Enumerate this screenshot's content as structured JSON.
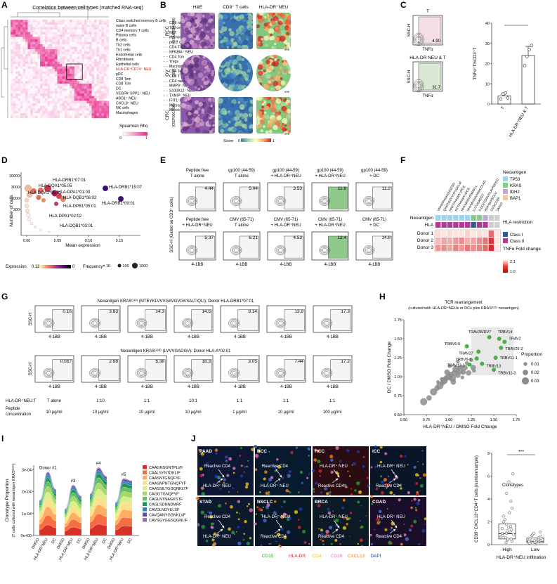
{
  "panel_letters": [
    "A",
    "B",
    "C",
    "D",
    "E",
    "F",
    "G",
    "H",
    "I",
    "J"
  ],
  "panelA": {
    "title": "Correlation between cell types (matched RNA-seq)",
    "labels_left": [
      "Class switched memory B cells",
      "naive B cells",
      "CD4 memory T cells",
      "Plasma cells",
      "B cells",
      "Th2 cells",
      "Th1 cells",
      "Endothelial cells",
      "Fibroblasts",
      "Epithelial cells",
      "HLA-DR⁺CD74⁺ NEU",
      "pDC",
      "CD8 Tem",
      "CD8 Tcm",
      "DC",
      "VEGFA⁺SPP1⁺ NEU",
      "ARG1⁺ NEU",
      "CXCL8⁺ NEU",
      "NK cells",
      "Macrophages"
    ],
    "labels_right": [
      "CD8 naive T cells",
      "Tgd cells",
      "NKT",
      "Memory B cells",
      "pro B cells",
      "CD4 T cells",
      "NFKBIA⁺ NEU",
      "CD4 Tcm",
      "Tregs",
      "Macrophages M1",
      "CD4 Tem",
      "CD8 T cells",
      "CD4 naive T cells",
      "MMP9⁺ NEU",
      "S100A12⁺ NEU",
      "TXNIP⁺ NEU",
      "IFIT1⁺ISG15⁺ NEU",
      "Macrophages M2",
      "Monocytes"
    ],
    "highlight_label": "HLA-DR⁺CD74⁺ NEU",
    "legend_title": "Spearman Rho",
    "legend_min": "0",
    "legend_max": "1",
    "highlight_color": "#d7191c"
  },
  "panelB": {
    "columns": [
      "H&E",
      "CD8⁺ T cells",
      "HLA-DR⁺NEU"
    ],
    "rows": [
      {
        "label": "RCC",
        "sub": "(GSM5924040)"
      },
      {
        "label": "OV",
        "sub": "(10x)"
      },
      {
        "label": "CRC",
        "sub": "(OEP001756)"
      }
    ],
    "stars": "***",
    "score_label": "Score",
    "score_min": "0",
    "score_max": "1"
  },
  "panelC": {
    "flow": [
      {
        "title": "T",
        "value": "4.90"
      },
      {
        "title": "HLA-DR NEU & T",
        "value": "31.7"
      }
    ],
    "flow_ylabel": "SSC-H",
    "flow_xlabel": "TNFα",
    "chart_ylabel": "TNFα⁺T%CD3⁺T",
    "sig": "***"
  },
  "panelD": {
    "ylabel": "Number of cells",
    "xlabel": "Mean expression",
    "yticks": [
      "10000",
      "3000",
      "1000",
      "300"
    ],
    "xticks": [
      "0.00",
      "0.05",
      "0.10",
      "0.15"
    ],
    "annotations": [
      "HLA-DRB1*07:01",
      "HLA-DQA1*05:05",
      "HLA-DRB1*15:07",
      "HLA-DQA1*05:01",
      "HLA-DPA1*01:03",
      "HLA-DQB1*06:02",
      "HLA-DRB1*09:01",
      "HLA-DPB1*05:01",
      "HLA-DPA1*02:02",
      "HLA-DQB1*03:01"
    ],
    "expr_label": "Expression",
    "expr_max": "0.16",
    "expr_min": "0",
    "freq_label": "Frequency",
    "freq_values": [
      "10",
      "100",
      "1000"
    ]
  },
  "panelE": {
    "ylabel": "SSC-H (Gated on CD3⁺ cells)",
    "xlabel": "4-1BB",
    "top": [
      {
        "l1": "Peptide free",
        "l2": "T alone",
        "value": "4.44",
        "green": false
      },
      {
        "l1": "gp100 (44-59)",
        "l2": "T alone",
        "value": "5.04",
        "green": false
      },
      {
        "l1": "gp100 (44-59)",
        "l2": "+ HLA-DR⁺NEU",
        "value": "3.53",
        "green": false
      },
      {
        "l1": "gp100 (44-59)",
        "l2": "+ HLA-DR⁺NEU",
        "value": "11.9",
        "green": true
      },
      {
        "l1": "gp100 (44-59)",
        "l2": "+ DC",
        "value": "11.2",
        "green": false
      }
    ],
    "bottom": [
      {
        "l1": "Peptide free",
        "l2": "+ HLA-DR⁺NEU",
        "value": "5.37",
        "green": false
      },
      {
        "l1": "CMV (65-71)",
        "l2": "T alone",
        "value": "6.21",
        "green": false
      },
      {
        "l1": "CMV (65-71)",
        "l2": "+ HLA-DR⁺NEU",
        "value": "4.53",
        "green": false
      },
      {
        "l1": "CMV (65-71)",
        "l2": "+ HLA-DR⁺NEU",
        "value": "12.4",
        "green": true
      },
      {
        "l1": "CMV (65-71)",
        "l2": "+ DC",
        "value": "14.8",
        "green": false
      }
    ]
  },
  "panelF": {
    "col_labels": [
      "VRHGPHGHGHSDSD",
      "QHGTAGYVVPVOFLM",
      "HNTTFHHWYVPCE",
      "RTTFHHWYVPCE",
      "HHYMHSIVRMAFLL",
      "HHYMHSHVHIIHLDLAD",
      "LVVVGADGV",
      "ILDCEFDGVDLAVNIIHLD",
      "RDFQKPEGLV",
      "CD3/CD28",
      "DMSO"
    ],
    "row_labels": [
      "Neoantigen",
      "HLA",
      "Donor 1",
      "Donor 2",
      "Donor 3"
    ],
    "neo_colors": [
      "#9fd4ea",
      "#9fd4ea",
      "#9fd4ea",
      "#9fd4ea",
      "#9fd4ea",
      "#9fd4ea",
      "#8cc987",
      "#8cc987",
      "#c0a9d8",
      "#cfcfcf",
      "#cfcfcf"
    ],
    "hla_colors": [
      "#b03a96",
      "#b03a96",
      "#b03a96",
      "#b03a96",
      "#b03a96",
      "#b03a96",
      "#2c5f8a",
      "#b03a96",
      "#b03a96",
      "#cfcfcf",
      "#cfcfcf"
    ],
    "donors": [
      [
        0.1,
        0.05,
        0.1,
        0.05,
        0.05,
        0.15,
        0.05,
        0.1,
        0.05,
        0.6,
        0.05
      ],
      [
        0.25,
        0.35,
        0.3,
        0.4,
        0.45,
        0.3,
        0.35,
        0.45,
        0.55,
        0.85,
        0.05
      ],
      [
        0.4,
        0.45,
        0.35,
        0.5,
        0.4,
        0.55,
        0.45,
        0.5,
        0.6,
        0.9,
        0.05
      ]
    ],
    "legend_neo_title": "Neoantigen",
    "legend_neo": [
      {
        "name": "TP53",
        "color": "#9fd4ea"
      },
      {
        "name": "KRAS",
        "color": "#8cc987"
      },
      {
        "name": "IDH2",
        "color": "#c0a9d8"
      },
      {
        "name": "BAP1",
        "color": "#f2c7a3"
      }
    ],
    "legend_hla_title": "HLA restriction",
    "legend_hla": [
      {
        "name": "Class I",
        "color": "#2c5f8a"
      },
      {
        "name": "Class II",
        "color": "#b03a96"
      }
    ],
    "legend_fc_title": "TNFα Fold change",
    "legend_fc_max": "2.1",
    "legend_fc_min": "1.0"
  },
  "panelG": {
    "row1_title": "Neoantigen KRASᴳ¹²ᵛ (MTEYKLVVVGAVGVGKSALTIQLI); Donor HLA-DRB1*07:01",
    "row2_title": "Neoantigen KRASᴳ¹²ᴰ (LVVVGADGV); Donor HLA-A*02:01",
    "row1_values": [
      "0.16",
      "3.83",
      "14.3",
      "14.6",
      "9.14",
      "13.8",
      "17.3"
    ],
    "row2_values": [
      "0.067",
      "2.68",
      "6.38",
      "18.3",
      "3.05",
      "7.44",
      "17.2"
    ],
    "ylabel": "SSC-H",
    "xlabel": "4-1BB",
    "ratio_label": "HLA-DR⁺NEU:T",
    "pep_label1": "Peptide",
    "pep_label2": "concentration",
    "ratios": [
      "T alone",
      "1:10",
      "1:1",
      "10:1",
      "1:1",
      "1:1",
      "1:1"
    ],
    "concs": [
      "10 μg/ml",
      "10 μg/ml",
      "10 μg/ml",
      "10 μg/ml",
      "1 μg/ml",
      "10 μg/ml",
      "100 μg/ml"
    ]
  },
  "chart_data": [
    {
      "panel": "C",
      "type": "bar",
      "categories": [
        "T",
        "HLA-DR⁺NEU & T"
      ],
      "values": [
        4.0,
        24.0
      ],
      "errors": [
        1.5,
        4.5
      ],
      "points": [
        [
          2.5,
          5.0,
          5.5,
          3.0
        ],
        [
          19.0,
          23.5,
          27.0,
          29.0
        ]
      ],
      "ylabel": "TNFα⁺T%CD3⁺T",
      "ylim": [
        0,
        40
      ],
      "yticks": [
        0,
        10,
        20,
        30,
        40
      ]
    },
    {
      "panel": "H",
      "type": "scatter",
      "title": "TCR rearrangement",
      "subtitle": "(cultured with HLA-DR⁺NEUs or DCs plus KRASᴳ¹²ᵛ neoantigen)",
      "xlabel": "HLA-DR⁺NEU / DMSO Fold Change",
      "ylabel": "DC / DMSO Fold Change",
      "xlim": [
        0.5,
        1.75
      ],
      "ylim": [
        0.5,
        1.75
      ],
      "xticks": [
        0.5,
        0.75,
        1.0,
        1.25,
        1.5,
        1.75
      ],
      "yticks": [
        0.5,
        0.75,
        1.0,
        1.25,
        1.5,
        1.75
      ],
      "highlight": [
        {
          "label": "TRAV36/DV7",
          "x": 1.45,
          "y": 1.52
        },
        {
          "label": "TRBV14",
          "x": 1.56,
          "y": 1.5
        },
        {
          "label": "TRAV2",
          "x": 1.62,
          "y": 1.46
        },
        {
          "label": "TRBV6-5",
          "x": 1.2,
          "y": 1.4
        },
        {
          "label": "TRAV26-2",
          "x": 1.58,
          "y": 1.38
        },
        {
          "label": "TRAV27",
          "x": 1.33,
          "y": 1.33
        },
        {
          "label": "TRBV6-8",
          "x": 1.31,
          "y": 1.24
        },
        {
          "label": "TRBV11-1",
          "x": 1.52,
          "y": 1.25
        },
        {
          "label": "TRAV12-1",
          "x": 1.23,
          "y": 1.16
        },
        {
          "label": "TRBV13",
          "x": 1.37,
          "y": 1.17
        },
        {
          "label": "TRBV11-3",
          "x": 1.5,
          "y": 1.09
        }
      ],
      "gray_points": [
        [
          0.72,
          0.67,
          0.03
        ],
        [
          0.78,
          0.72,
          0.02
        ],
        [
          0.83,
          0.8,
          0.03
        ],
        [
          0.87,
          0.85,
          0.02
        ],
        [
          0.9,
          0.88,
          0.03
        ],
        [
          0.93,
          0.92,
          0.02
        ],
        [
          0.95,
          0.95,
          0.03
        ],
        [
          0.97,
          0.98,
          0.02
        ],
        [
          1.0,
          1.0,
          0.03
        ],
        [
          1.02,
          1.03,
          0.02
        ],
        [
          1.04,
          0.98,
          0.03
        ],
        [
          1.06,
          1.05,
          0.02
        ],
        [
          1.08,
          1.1,
          0.03
        ],
        [
          1.1,
          1.02,
          0.02
        ],
        [
          1.12,
          1.08,
          0.03
        ],
        [
          1.14,
          1.13,
          0.01
        ],
        [
          1.16,
          1.06,
          0.02
        ],
        [
          1.18,
          1.12,
          0.02
        ],
        [
          1.2,
          1.18,
          0.01
        ],
        [
          1.22,
          1.05,
          0.02
        ],
        [
          1.25,
          1.22,
          0.01
        ],
        [
          1.27,
          1.12,
          0.02
        ],
        [
          0.98,
          1.06,
          0.02
        ],
        [
          0.92,
          0.97,
          0.01
        ],
        [
          1.05,
          0.93,
          0.02
        ],
        [
          1.15,
          0.99,
          0.01
        ],
        [
          1.01,
          1.14,
          0.01
        ],
        [
          0.88,
          0.93,
          0.01
        ],
        [
          1.28,
          1.08,
          0.01
        ],
        [
          1.1,
          1.2,
          0.01
        ]
      ],
      "legend_title": "Proportion",
      "legend_values": [
        0.01,
        0.02,
        0.03
      ]
    },
    {
      "panel": "I",
      "type": "area",
      "ylabel": "Clonotype Proportion",
      "ylabel2": "(T cells cultured with neoantigen KRASᴳ¹²ᵛ)",
      "yticks": [
        "0e+00",
        "1e-04",
        "2e-04",
        "3e-04"
      ],
      "ylim": [
        0,
        0.00032
      ],
      "donor_labels": [
        "Donor #1",
        "#3",
        "#4",
        "#5"
      ],
      "x_labels": [
        [
          "DMSO",
          "HLA-DR⁺NEU",
          "DC"
        ],
        [
          "DMSO",
          "HLA-DR⁺NEU",
          "DC"
        ],
        [
          "DMSO",
          "HLA-DR⁺NEU",
          "DC"
        ],
        [
          "DMSO",
          "HLA-DR⁺NEU",
          "DC"
        ]
      ],
      "totals": [
        [
          0.00016,
          0.00029,
          0.00021
        ],
        [
          0.00012,
          0.00023,
          0.00018
        ],
        [
          0.00019,
          0.00031,
          0.00027
        ],
        [
          0.00015,
          0.00026,
          0.00025
        ]
      ],
      "legend_title": "Clonotypes",
      "clonotypes": [
        {
          "name": "CAAGNSGNTPLVF",
          "color": "#d73027"
        },
        {
          "name": "CAALSYNTDKLIF",
          "color": "#f46d43"
        },
        {
          "name": "CAASNTGNQFYF",
          "color": "#fdae61"
        },
        {
          "name": "CAASNPNTGNQFYF",
          "color": "#fee08b"
        },
        {
          "name": "CAASSILTGGQNKLTF",
          "color": "#d9ef8b"
        },
        {
          "name": "CAGGTGNQFYF",
          "color": "#a6d96a"
        },
        {
          "name": "CAGLNTNAGKSTF",
          "color": "#66bd63"
        },
        {
          "name": "CAGLSDNNDMRF",
          "color": "#1a9850"
        },
        {
          "name": "CAVDLNDYKLSF",
          "color": "#3288bd"
        },
        {
          "name": "CAVQANYGGNKLVF",
          "color": "#5e4fa2"
        },
        {
          "name": "CAVSGYGGSQGNLIF",
          "color": "#9e6ebd"
        }
      ]
    },
    {
      "panel": "J",
      "type": "box",
      "categories": [
        "High",
        "Low"
      ],
      "xlabel": "HLA-DR⁺NEU infiltration",
      "ylabel": "CD39⁺CXCL13⁺CD4⁺T cells (number/sample)",
      "ylim": [
        0,
        8
      ],
      "yticks": [
        0,
        2,
        4,
        6,
        8
      ],
      "high": [
        0.2,
        0.3,
        0.4,
        0.5,
        0.5,
        0.6,
        0.7,
        0.8,
        0.9,
        1.0,
        1.0,
        1.1,
        1.2,
        1.3,
        1.4,
        1.5,
        1.6,
        1.8,
        2.0,
        2.2,
        2.5,
        2.8,
        3.2,
        3.8,
        4.5,
        5.3,
        5.5,
        6.2
      ],
      "low": [
        0.05,
        0.1,
        0.1,
        0.15,
        0.2,
        0.2,
        0.25,
        0.3,
        0.3,
        0.35,
        0.4,
        0.45,
        0.5,
        0.55,
        0.6,
        0.7,
        0.8,
        0.9,
        1.0,
        1.1
      ],
      "high_box": [
        0.5,
        0.95,
        1.8
      ],
      "low_box": [
        0.15,
        0.3,
        0.6
      ],
      "sig": "***"
    }
  ],
  "panelJ": {
    "tiles": [
      {
        "label": "PAAD",
        "texts": [
          "Reactive CD4",
          "HLA-DR⁺ NEU"
        ]
      },
      {
        "label": "RCC",
        "texts": [
          "Reactive CD4",
          "HLA-DR⁺ NEU"
        ]
      },
      {
        "label": "HCC",
        "texts": [
          "HLA-DR⁺ NEU",
          "Reactive CD4"
        ]
      },
      {
        "label": "ICC",
        "texts": [
          "HLA-DR⁺ NEU",
          "Reactive CD4"
        ]
      },
      {
        "label": "STAD",
        "texts": [
          "Reactive CD4",
          "HLA-DR⁺ NEU"
        ]
      },
      {
        "label": "NSCLC",
        "texts": [
          "HLA-DR⁺ NEU",
          "Reactive CD4"
        ]
      },
      {
        "label": "BRCA",
        "texts": [
          "HLA-DR⁺ NEU",
          "Reactive CD4"
        ]
      },
      {
        "label": "COAD",
        "texts": [
          "HLA-DR⁺ NEU",
          "Reactive CD4"
        ]
      }
    ],
    "stains": [
      {
        "name": "CD15",
        "color": "#2ca02c"
      },
      {
        "name": "HLA-DR",
        "color": "#d62728"
      },
      {
        "name": "CD4",
        "color": "#e6c619"
      },
      {
        "name": "CD39",
        "color": "#e377c2"
      },
      {
        "name": "CXCL13",
        "color": "#ff7f0e"
      },
      {
        "name": "DAPI",
        "color": "#1f3ab4"
      }
    ]
  }
}
